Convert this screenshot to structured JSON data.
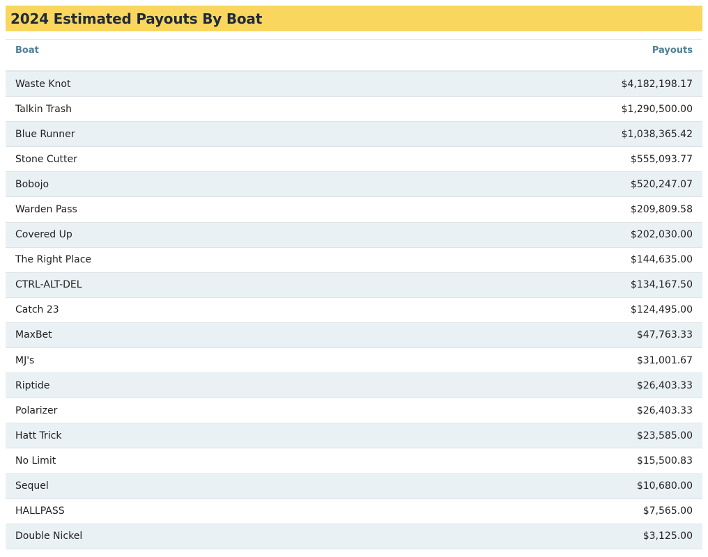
{
  "title": "2024 Estimated Payouts By Boat",
  "table": {
    "headers": {
      "boat": "Boat",
      "payouts": "Payouts"
    },
    "rows": [
      {
        "boat": "Waste Knot",
        "payout": "$4,182,198.17"
      },
      {
        "boat": "Talkin Trash",
        "payout": "$1,290,500.00"
      },
      {
        "boat": "Blue Runner",
        "payout": "$1,038,365.42"
      },
      {
        "boat": "Stone Cutter",
        "payout": "$555,093.77"
      },
      {
        "boat": "Bobojo",
        "payout": "$520,247.07"
      },
      {
        "boat": "Warden Pass",
        "payout": "$209,809.58"
      },
      {
        "boat": "Covered Up",
        "payout": "$202,030.00"
      },
      {
        "boat": "The Right Place",
        "payout": "$144,635.00"
      },
      {
        "boat": "CTRL-ALT-DEL",
        "payout": "$134,167.50"
      },
      {
        "boat": "Catch 23",
        "payout": "$124,495.00"
      },
      {
        "boat": "MaxBet",
        "payout": "$47,763.33"
      },
      {
        "boat": "MJ's",
        "payout": "$31,001.67"
      },
      {
        "boat": "Riptide",
        "payout": "$26,403.33"
      },
      {
        "boat": "Polarizer",
        "payout": "$26,403.33"
      },
      {
        "boat": "Hatt Trick",
        "payout": "$23,585.00"
      },
      {
        "boat": "No Limit",
        "payout": "$15,500.83"
      },
      {
        "boat": "Sequel",
        "payout": "$10,680.00"
      },
      {
        "boat": "HALLPASS",
        "payout": "$7,565.00"
      },
      {
        "boat": "Double Nickel",
        "payout": "$3,125.00"
      }
    ]
  },
  "colors": {
    "title_bg": "#f9d65e",
    "header_text": "#4f7f96",
    "row_alt_bg": "#eaf1f4"
  }
}
